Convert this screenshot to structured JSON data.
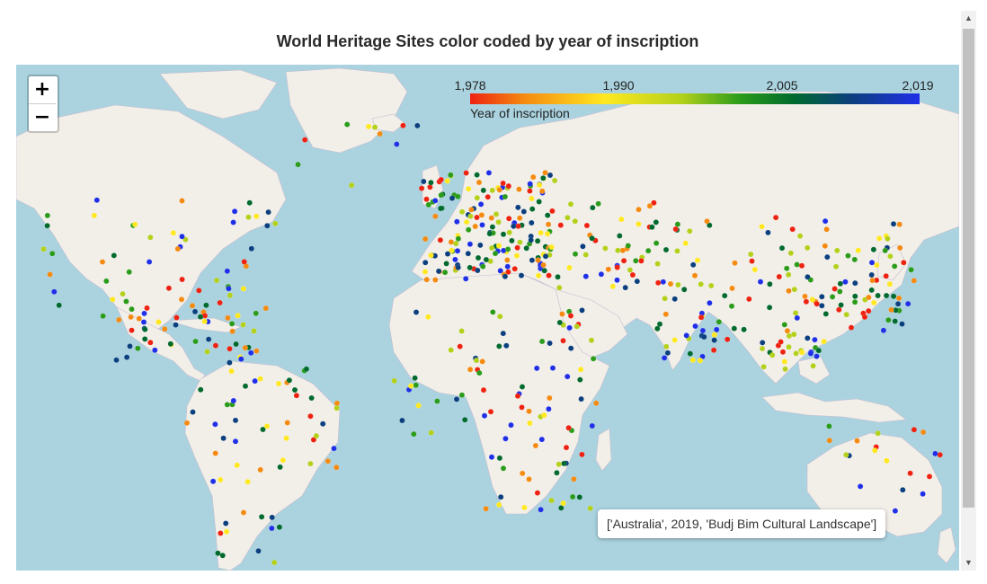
{
  "title": "World Heritage Sites color coded by year of inscription",
  "zoom": {
    "in_label": "+",
    "out_label": "−"
  },
  "legend": {
    "caption": "Year of inscription",
    "ticks": [
      {
        "label": "1,978",
        "value": 1978
      },
      {
        "label": "1,990",
        "value": 1990
      },
      {
        "label": "2,005",
        "value": 2005
      },
      {
        "label": "2,019",
        "value": 2019
      }
    ],
    "colors": [
      "#ee2211",
      "#f58a10",
      "#ffe820",
      "#b3d11a",
      "#2b9c1a",
      "#006a2e",
      "#0b3f7e",
      "#1f2fe8"
    ]
  },
  "tooltip": {
    "text": "['Australia', 2019, 'Budj Bim Cultural Landscape']"
  },
  "map": {
    "water_color": "#aad3df",
    "land_color": "#f2efe9"
  }
}
